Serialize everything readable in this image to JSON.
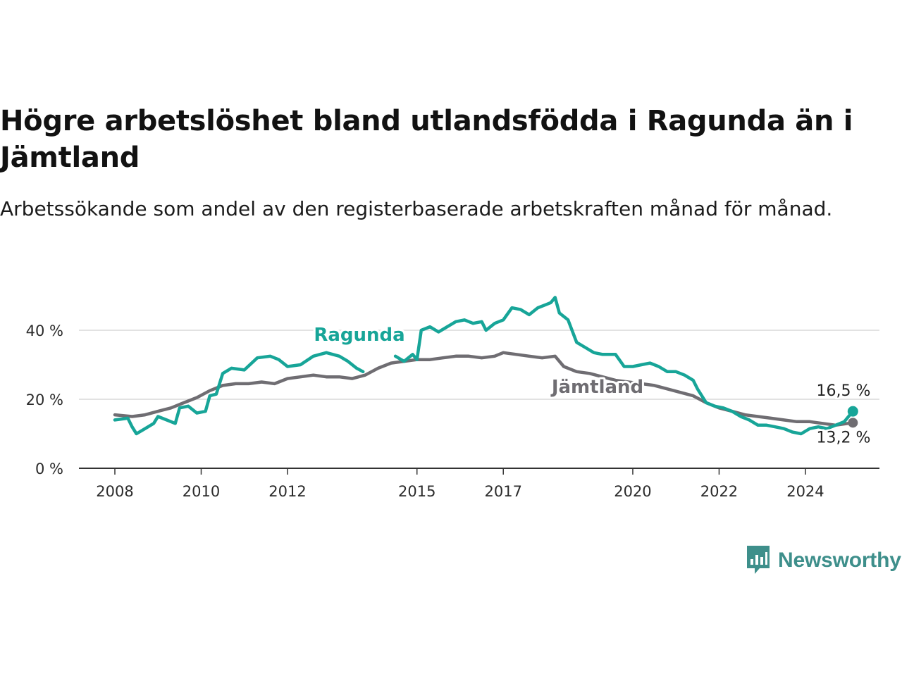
{
  "title": "Högre arbetslöshet bland utlandsfödda i Ragunda än i Jämtland",
  "subtitle": "Arbetssökande som andel av den registerbaserade arbetskraften månad för månad.",
  "brand": {
    "name": "Newsworthy",
    "icon": "newsworthy-logo-icon",
    "color": "#3e8f8b"
  },
  "chart_data": {
    "type": "line",
    "ylim": [
      0,
      50
    ],
    "yticks": [
      0,
      20,
      40
    ],
    "ytick_labels": [
      "0 %",
      "20 %",
      "40 %"
    ],
    "xlim": [
      2008.0,
      2025.5
    ],
    "xticks": [
      2008,
      2010,
      2012,
      2015,
      2017,
      2020,
      2022,
      2024
    ],
    "xtick_labels": [
      "2008",
      "2010",
      "2012",
      "2015",
      "2017",
      "2020",
      "2022",
      "2024"
    ],
    "grid": true,
    "legend": "inline labels",
    "series": [
      {
        "name": "Ragunda",
        "color": "#17a598",
        "end_label": "16,5 %",
        "points": [
          [
            2008.0,
            14
          ],
          [
            2008.3,
            14.5
          ],
          [
            2008.4,
            12
          ],
          [
            2008.5,
            10
          ],
          [
            2008.7,
            11.5
          ],
          [
            2008.9,
            13
          ],
          [
            2009.0,
            15
          ],
          [
            2009.2,
            14
          ],
          [
            2009.4,
            13
          ],
          [
            2009.5,
            17.5
          ],
          [
            2009.7,
            18
          ],
          [
            2009.9,
            16
          ],
          [
            2010.1,
            16.5
          ],
          [
            2010.2,
            21
          ],
          [
            2010.35,
            21.5
          ],
          [
            2010.5,
            27.5
          ],
          [
            2010.7,
            29
          ],
          [
            2011.0,
            28.5
          ],
          [
            2011.3,
            32
          ],
          [
            2011.6,
            32.5
          ],
          [
            2011.8,
            31.5
          ],
          [
            2012.0,
            29.5
          ],
          [
            2012.3,
            30
          ],
          [
            2012.6,
            32.5
          ],
          [
            2012.9,
            33.5
          ],
          [
            2013.2,
            32.5
          ],
          [
            2013.4,
            31
          ],
          [
            2013.6,
            29
          ],
          [
            2013.75,
            28
          ]
        ],
        "points_b": [
          [
            2014.5,
            32.5
          ],
          [
            2014.7,
            31
          ],
          [
            2014.9,
            33
          ],
          [
            2015.0,
            31.5
          ],
          [
            2015.1,
            40
          ],
          [
            2015.3,
            41
          ],
          [
            2015.5,
            39.5
          ],
          [
            2015.7,
            41
          ],
          [
            2015.9,
            42.5
          ],
          [
            2016.1,
            43
          ],
          [
            2016.3,
            42
          ],
          [
            2016.5,
            42.5
          ],
          [
            2016.6,
            40
          ],
          [
            2016.8,
            42
          ],
          [
            2017.0,
            43
          ],
          [
            2017.2,
            46.5
          ],
          [
            2017.4,
            46
          ],
          [
            2017.6,
            44.5
          ],
          [
            2017.8,
            46.5
          ],
          [
            2018.0,
            47.5
          ],
          [
            2018.1,
            48
          ],
          [
            2018.2,
            49.5
          ],
          [
            2018.3,
            45
          ],
          [
            2018.5,
            43
          ],
          [
            2018.7,
            36.5
          ],
          [
            2018.9,
            35
          ],
          [
            2019.1,
            33.5
          ],
          [
            2019.3,
            33
          ],
          [
            2019.6,
            33
          ],
          [
            2019.8,
            29.5
          ],
          [
            2020.0,
            29.5
          ],
          [
            2020.2,
            30
          ],
          [
            2020.4,
            30.5
          ],
          [
            2020.6,
            29.5
          ],
          [
            2020.8,
            28
          ],
          [
            2021.0,
            28
          ],
          [
            2021.2,
            27
          ],
          [
            2021.4,
            25.5
          ],
          [
            2021.5,
            23
          ],
          [
            2021.7,
            19
          ],
          [
            2021.9,
            18
          ],
          [
            2022.1,
            17.5
          ],
          [
            2022.3,
            16.5
          ],
          [
            2022.5,
            15
          ],
          [
            2022.7,
            14
          ],
          [
            2022.9,
            12.5
          ],
          [
            2023.1,
            12.5
          ],
          [
            2023.3,
            12
          ],
          [
            2023.5,
            11.5
          ],
          [
            2023.7,
            10.5
          ],
          [
            2023.9,
            10
          ],
          [
            2024.1,
            11.5
          ],
          [
            2024.3,
            12
          ],
          [
            2024.5,
            11.5
          ],
          [
            2024.7,
            12.5
          ],
          [
            2024.9,
            13.5
          ],
          [
            2025.1,
            16.5
          ]
        ]
      },
      {
        "name": "Jämtland",
        "color": "#6f6d72",
        "end_label": "13,2 %",
        "points": [
          [
            2008.0,
            15.5
          ],
          [
            2008.4,
            15
          ],
          [
            2008.7,
            15.5
          ],
          [
            2009.0,
            16.5
          ],
          [
            2009.3,
            17.5
          ],
          [
            2009.6,
            19
          ],
          [
            2009.9,
            20.5
          ],
          [
            2010.2,
            22.5
          ],
          [
            2010.5,
            24
          ],
          [
            2010.8,
            24.5
          ],
          [
            2011.1,
            24.5
          ],
          [
            2011.4,
            25
          ],
          [
            2011.7,
            24.5
          ],
          [
            2012.0,
            26
          ],
          [
            2012.3,
            26.5
          ],
          [
            2012.6,
            27
          ],
          [
            2012.9,
            26.5
          ],
          [
            2013.2,
            26.5
          ],
          [
            2013.5,
            26
          ],
          [
            2013.8,
            27
          ],
          [
            2014.1,
            29
          ],
          [
            2014.4,
            30.5
          ],
          [
            2014.7,
            31
          ],
          [
            2015.0,
            31.5
          ],
          [
            2015.3,
            31.5
          ],
          [
            2015.6,
            32
          ],
          [
            2015.9,
            32.5
          ],
          [
            2016.2,
            32.5
          ],
          [
            2016.5,
            32
          ],
          [
            2016.8,
            32.5
          ],
          [
            2017.0,
            33.5
          ],
          [
            2017.3,
            33
          ],
          [
            2017.6,
            32.5
          ],
          [
            2017.9,
            32
          ],
          [
            2018.2,
            32.5
          ],
          [
            2018.4,
            29.5
          ],
          [
            2018.7,
            28
          ],
          [
            2019.0,
            27.5
          ],
          [
            2019.3,
            26.5
          ],
          [
            2019.6,
            25.5
          ],
          [
            2019.9,
            25
          ],
          [
            2020.2,
            24.5
          ],
          [
            2020.5,
            24
          ],
          [
            2020.8,
            23
          ],
          [
            2021.1,
            22
          ],
          [
            2021.4,
            21
          ],
          [
            2021.7,
            19
          ],
          [
            2022.0,
            17.5
          ],
          [
            2022.3,
            16.5
          ],
          [
            2022.6,
            15.5
          ],
          [
            2022.9,
            15
          ],
          [
            2023.2,
            14.5
          ],
          [
            2023.5,
            14
          ],
          [
            2023.8,
            13.5
          ],
          [
            2024.1,
            13.5
          ],
          [
            2024.4,
            13
          ],
          [
            2024.7,
            12.5
          ],
          [
            2025.1,
            13.2
          ]
        ]
      }
    ]
  }
}
